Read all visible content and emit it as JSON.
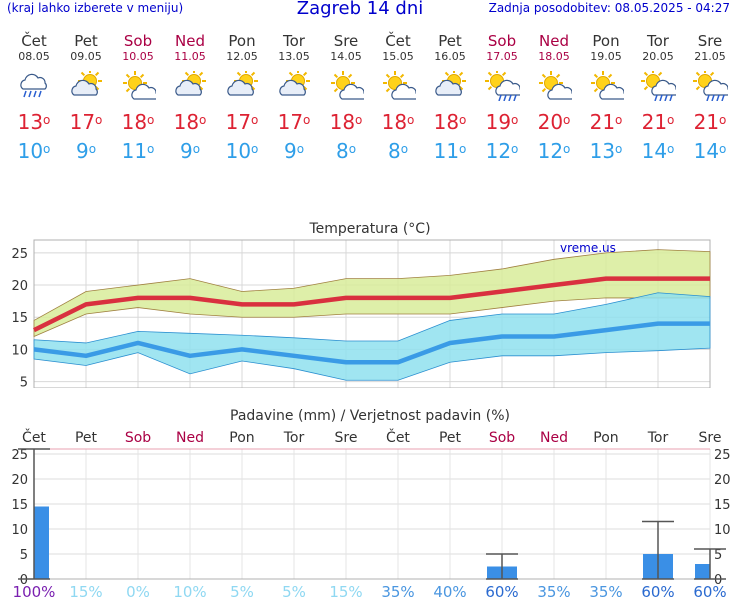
{
  "header": {
    "left_note": "(kraj lahko izberete v meniju)",
    "title": "Zagreb 14 dni",
    "updated": "Zadnja posodobitev: 08.05.2025 - 04:27"
  },
  "days": [
    {
      "name": "Čet",
      "date": "08.05",
      "weekend": false,
      "icon": "rain-icon",
      "max": "13",
      "min": "10"
    },
    {
      "name": "Pet",
      "date": "09.05",
      "weekend": false,
      "icon": "partly-cloudy-icon",
      "max": "17",
      "min": "9"
    },
    {
      "name": "Sob",
      "date": "10.05",
      "weekend": true,
      "icon": "sun-cloud-icon",
      "max": "18",
      "min": "11"
    },
    {
      "name": "Ned",
      "date": "11.05",
      "weekend": true,
      "icon": "partly-cloudy-icon",
      "max": "18",
      "min": "9"
    },
    {
      "name": "Pon",
      "date": "12.05",
      "weekend": false,
      "icon": "partly-cloudy-icon",
      "max": "17",
      "min": "10"
    },
    {
      "name": "Tor",
      "date": "13.05",
      "weekend": false,
      "icon": "partly-cloudy-icon",
      "max": "17",
      "min": "9"
    },
    {
      "name": "Sre",
      "date": "14.05",
      "weekend": false,
      "icon": "sun-cloud-icon",
      "max": "18",
      "min": "8"
    },
    {
      "name": "Čet",
      "date": "15.05",
      "weekend": false,
      "icon": "sun-cloud-icon",
      "max": "18",
      "min": "8"
    },
    {
      "name": "Pet",
      "date": "16.05",
      "weekend": false,
      "icon": "partly-cloudy-icon",
      "max": "18",
      "min": "11"
    },
    {
      "name": "Sob",
      "date": "17.05",
      "weekend": true,
      "icon": "sun-rain-icon",
      "max": "19",
      "min": "12"
    },
    {
      "name": "Ned",
      "date": "18.05",
      "weekend": true,
      "icon": "sun-cloud-icon",
      "max": "20",
      "min": "12"
    },
    {
      "name": "Pon",
      "date": "19.05",
      "weekend": false,
      "icon": "sun-cloud-icon",
      "max": "21",
      "min": "13"
    },
    {
      "name": "Tor",
      "date": "20.05",
      "weekend": false,
      "icon": "sun-rain-icon",
      "max": "21",
      "min": "14"
    },
    {
      "name": "Sre",
      "date": "21.05",
      "weekend": false,
      "icon": "sun-rain-icon",
      "max": "21",
      "min": "14"
    }
  ],
  "colors": {
    "weekend": "#aa0044",
    "max_line": "#d9303f",
    "min_line": "#3a9be6",
    "max_band": "#d8ec9a",
    "min_band": "#8fe0ee",
    "overlap_band": "#7fd0a8",
    "precip_bar": "#3a8fe6",
    "prob_high": "#2a6ad0",
    "prob_low": "#8fd8f2"
  },
  "chart_data": [
    {
      "type": "line",
      "title": "Temperatura (°C)",
      "watermark": "vreme.us",
      "x": [
        "Čet",
        "Pet",
        "Sob",
        "Ned",
        "Pon",
        "Tor",
        "Sre",
        "Čet",
        "Pet",
        "Sob",
        "Ned",
        "Pon",
        "Tor",
        "Sre"
      ],
      "ylim": [
        4,
        27
      ],
      "yticks": [
        5,
        10,
        15,
        20,
        25
      ],
      "grid": true,
      "series": [
        {
          "role": "max",
          "values": [
            13,
            17,
            18,
            18,
            17,
            17,
            18,
            18,
            18,
            19,
            20,
            21,
            21,
            21
          ]
        },
        {
          "role": "min",
          "values": [
            10,
            9,
            11,
            9,
            10,
            9,
            8,
            8,
            11,
            12,
            12,
            13,
            14,
            14
          ]
        }
      ],
      "bands": [
        {
          "role": "max",
          "upper": [
            14.5,
            19,
            20,
            21,
            19,
            19.5,
            21,
            21,
            21.5,
            22.5,
            24,
            25,
            25.5,
            25.2
          ],
          "lower": [
            12,
            15.5,
            16.5,
            15.5,
            15,
            15,
            15.5,
            15.5,
            15.5,
            16.5,
            17.5,
            18,
            18,
            18
          ]
        },
        {
          "role": "min",
          "upper": [
            11.5,
            11,
            12.8,
            12.5,
            12.2,
            11.8,
            11.3,
            11.3,
            14.5,
            15.5,
            15.5,
            17,
            18.8,
            18.2
          ],
          "lower": [
            8.5,
            7.5,
            9.5,
            6.2,
            8.2,
            7,
            5.2,
            5.2,
            8,
            9,
            9,
            9.5,
            9.8,
            10.2
          ]
        }
      ]
    },
    {
      "type": "bar",
      "title": "Padavine (mm) / Verjetnost padavin (%)",
      "categories": [
        "Čet",
        "Pet",
        "Sob",
        "Ned",
        "Pon",
        "Tor",
        "Sre",
        "Čet",
        "Pet",
        "Sob",
        "Ned",
        "Pon",
        "Tor",
        "Sre"
      ],
      "ylim": [
        0,
        26
      ],
      "yticks": [
        0,
        5,
        10,
        15,
        20,
        25
      ],
      "grid": true,
      "values": [
        14.5,
        0,
        0,
        0,
        0,
        0,
        0,
        0,
        0,
        2.5,
        0,
        0,
        5,
        3
      ],
      "error_max": [
        26,
        0,
        0,
        0,
        0,
        0,
        0,
        0,
        0,
        5,
        0,
        0,
        11.5,
        6
      ],
      "probability": [
        "100%",
        "15%",
        "0%",
        "10%",
        "5%",
        "5%",
        "15%",
        "35%",
        "40%",
        "60%",
        "35%",
        "35%",
        "60%",
        "60%"
      ],
      "probability_values": [
        100,
        15,
        0,
        10,
        5,
        5,
        15,
        35,
        40,
        60,
        35,
        35,
        60,
        60
      ]
    }
  ]
}
